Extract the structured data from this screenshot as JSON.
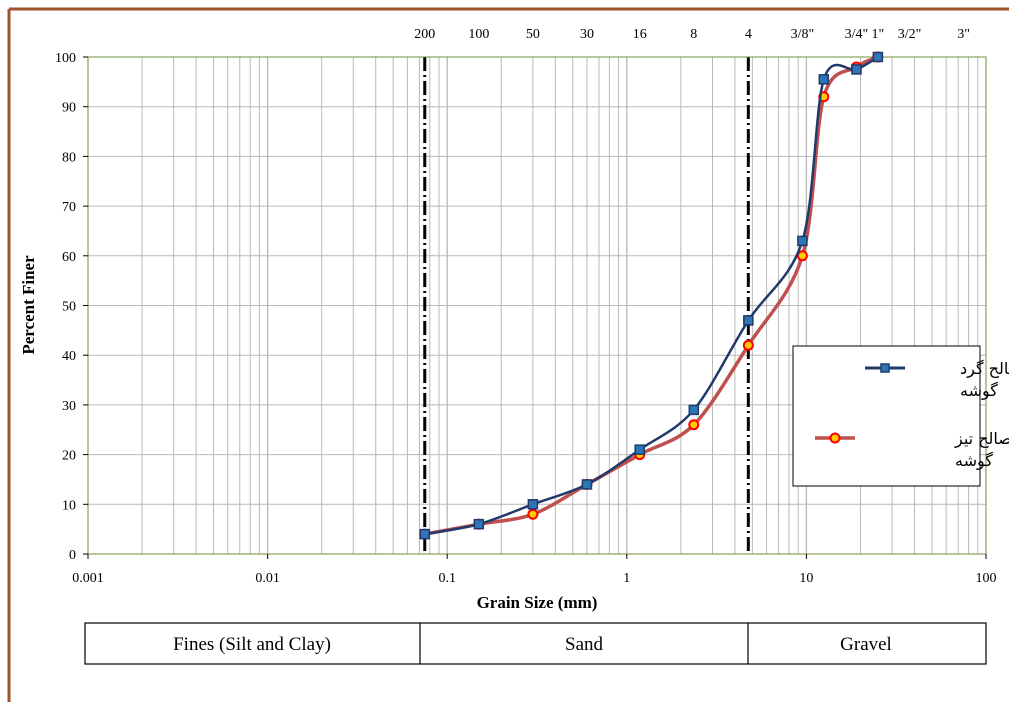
{
  "colors": {
    "frame": "#a0522d",
    "grid": "#b8b8b8",
    "plot_border": "#6f8f3a",
    "series_round": "#1f3a6b",
    "series_round_marker": "#2e75b6",
    "series_angular": "#c0504d",
    "series_angular_marker": "#ff0000",
    "series_angular_marker_fill": "#ffcc00"
  },
  "chart_data": {
    "type": "line",
    "x_scale": "log",
    "xlim": [
      0.001,
      100
    ],
    "ylim": [
      0,
      100
    ],
    "grid": true,
    "legend_position": "right",
    "xlabel": "Grain Size (mm)",
    "ylabel": "Percent Finer",
    "x_tick_labels": [
      "0.001",
      "0.01",
      "0.1",
      "1",
      "10",
      "100"
    ],
    "x_ticks": [
      0.001,
      0.01,
      0.1,
      1,
      10,
      100
    ],
    "y_ticks": [
      0,
      10,
      20,
      30,
      40,
      50,
      60,
      70,
      80,
      90,
      100
    ],
    "sieve_labels": [
      {
        "label": "200",
        "x": 0.075
      },
      {
        "label": "100",
        "x": 0.15
      },
      {
        "label": "50",
        "x": 0.3
      },
      {
        "label": "30",
        "x": 0.6
      },
      {
        "label": "16",
        "x": 1.18
      },
      {
        "label": "8",
        "x": 2.36
      },
      {
        "label": "4",
        "x": 4.75
      },
      {
        "label": "3/8\"",
        "x": 9.5
      },
      {
        "label": "3/4\"",
        "x": 19
      },
      {
        "label": "1\"",
        "x": 25
      },
      {
        "label": "3/2\"",
        "x": 37.5
      },
      {
        "label": "3\"",
        "x": 75
      }
    ],
    "reference_lines": [
      0.075,
      4.75
    ],
    "series": [
      {
        "name": "مصالح گرد گوشه",
        "marker": "square",
        "x": [
          0.075,
          0.15,
          0.3,
          0.6,
          1.18,
          2.36,
          4.75,
          9.5,
          12.5,
          19,
          25
        ],
        "y": [
          4,
          6,
          10,
          14,
          21,
          29,
          47,
          63,
          95.5,
          97.5,
          100
        ]
      },
      {
        "name": "مصالح تیز گوشه",
        "marker": "circle",
        "x": [
          0.075,
          0.15,
          0.3,
          0.6,
          1.18,
          2.36,
          4.75,
          9.5,
          12.5,
          19,
          25
        ],
        "y": [
          4,
          6,
          8,
          14,
          20,
          26,
          42,
          60,
          92,
          98,
          100
        ]
      }
    ]
  },
  "legend": {
    "round_line1": "مصالح گرد",
    "round_line2": "گوشه",
    "angular_line1": "مصالح تیز",
    "angular_line2": "گوشه"
  },
  "classification": [
    {
      "label": "Fines (Silt and Clay)"
    },
    {
      "label": "Sand"
    },
    {
      "label": "Gravel"
    }
  ]
}
